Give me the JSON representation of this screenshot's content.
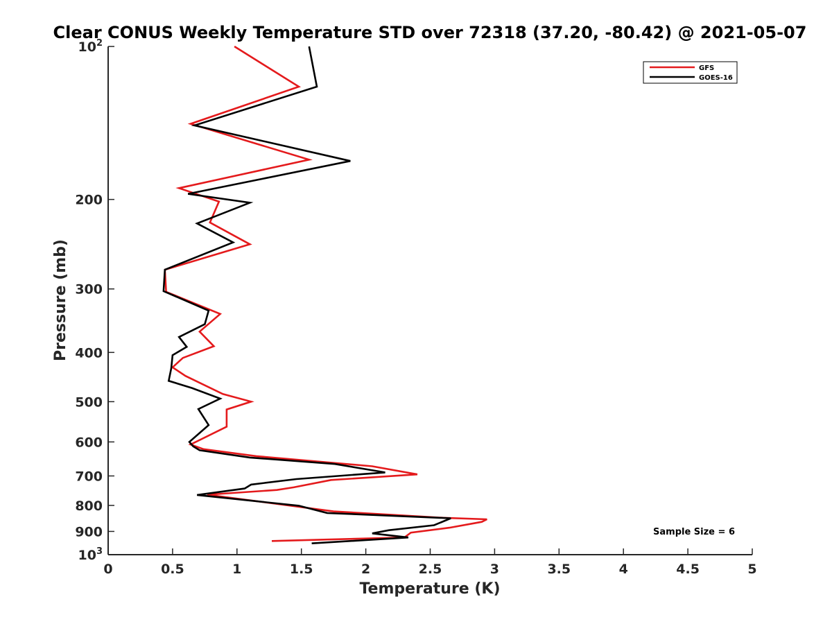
{
  "chart_data": {
    "type": "line",
    "title": "Clear CONUS Weekly Temperature STD over 72318 (37.20, -80.42) @ 2021-05-07",
    "xlabel": "Temperature (K)",
    "ylabel": "Pressure (mb)",
    "xlim": [
      0,
      5
    ],
    "ylim": [
      1000,
      100
    ],
    "y_scale": "log",
    "y_reversed": true,
    "x_ticks": [
      "0",
      "0.5",
      "1",
      "1.5",
      "2",
      "2.5",
      "3",
      "3.5",
      "4",
      "4.5",
      "5"
    ],
    "y_ticks": [
      {
        "value": 100,
        "base": "10",
        "exp": "2"
      },
      {
        "value": 200,
        "label": "200"
      },
      {
        "value": 300,
        "label": "300"
      },
      {
        "value": 400,
        "label": "400"
      },
      {
        "value": 500,
        "label": "500"
      },
      {
        "value": 600,
        "label": "600"
      },
      {
        "value": 700,
        "label": "700"
      },
      {
        "value": 800,
        "label": "800"
      },
      {
        "value": 900,
        "label": "900"
      },
      {
        "value": 1000,
        "base": "10",
        "exp": "3"
      }
    ],
    "grid": false,
    "legend_position": "top-right",
    "annotation": "Sample Size = 6",
    "series": [
      {
        "name": "GFS",
        "color": "#e41a1c",
        "points": [
          [
            0.98,
            100
          ],
          [
            1.48,
            120
          ],
          [
            0.64,
            142
          ],
          [
            1.56,
            167
          ],
          [
            0.55,
            190
          ],
          [
            0.86,
            202
          ],
          [
            0.79,
            222
          ],
          [
            1.1,
            245
          ],
          [
            0.44,
            275
          ],
          [
            0.45,
            304
          ],
          [
            0.87,
            336
          ],
          [
            0.71,
            364
          ],
          [
            0.82,
            389
          ],
          [
            0.58,
            410
          ],
          [
            0.5,
            428
          ],
          [
            0.6,
            445
          ],
          [
            0.89,
            483
          ],
          [
            1.11,
            500
          ],
          [
            0.92,
            518
          ],
          [
            0.92,
            560
          ],
          [
            0.64,
            607
          ],
          [
            0.74,
            620
          ],
          [
            1.15,
            640
          ],
          [
            2.05,
            670
          ],
          [
            2.4,
            695
          ],
          [
            1.73,
            713
          ],
          [
            1.44,
            737
          ],
          [
            1.31,
            746
          ],
          [
            0.77,
            762
          ],
          [
            1.75,
            822
          ],
          [
            2.6,
            846
          ],
          [
            2.94,
            852
          ],
          [
            2.9,
            862
          ],
          [
            2.65,
            885
          ],
          [
            2.35,
            905
          ],
          [
            2.3,
            925
          ],
          [
            1.27,
            940
          ]
        ]
      },
      {
        "name": "GOES-16",
        "color": "#000000",
        "points": [
          [
            1.56,
            100
          ],
          [
            1.62,
            120
          ],
          [
            0.67,
            143
          ],
          [
            1.88,
            168
          ],
          [
            0.62,
            195
          ],
          [
            1.1,
            203
          ],
          [
            0.69,
            223
          ],
          [
            0.97,
            243
          ],
          [
            0.44,
            275
          ],
          [
            0.43,
            303
          ],
          [
            0.78,
            331
          ],
          [
            0.75,
            352
          ],
          [
            0.55,
            373
          ],
          [
            0.61,
            390
          ],
          [
            0.5,
            405
          ],
          [
            0.49,
            430
          ],
          [
            0.47,
            455
          ],
          [
            0.65,
            470
          ],
          [
            0.87,
            493
          ],
          [
            0.7,
            517
          ],
          [
            0.78,
            556
          ],
          [
            0.63,
            600
          ],
          [
            0.66,
            612
          ],
          [
            0.71,
            623
          ],
          [
            1.1,
            644
          ],
          [
            1.76,
            663
          ],
          [
            2.15,
            689
          ],
          [
            1.46,
            710
          ],
          [
            1.11,
            728
          ],
          [
            1.06,
            741
          ],
          [
            0.69,
            763
          ],
          [
            1.48,
            801
          ],
          [
            1.7,
            828
          ],
          [
            2.66,
            848
          ],
          [
            2.53,
            875
          ],
          [
            2.18,
            895
          ],
          [
            2.05,
            908
          ],
          [
            2.33,
            925
          ],
          [
            1.58,
            950
          ]
        ]
      }
    ]
  }
}
